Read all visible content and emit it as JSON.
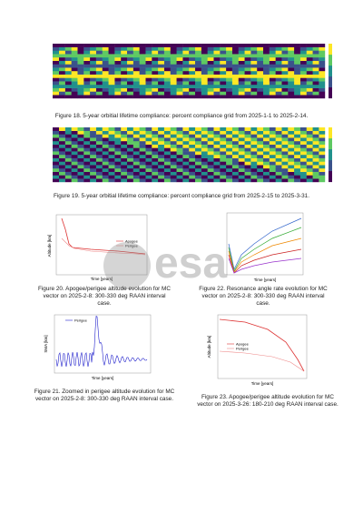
{
  "watermark": "esa",
  "figures": [
    {
      "caption": "Figure 18. 5-year orbitial lifetime compliance: percent compliance grid from 2025-1-1 to 2025-2-14."
    },
    {
      "caption": "Figure 19. 5-year orbitial lifetime compliance: percent compliance grid from 2025-2-15 to 2025-3-31."
    },
    {
      "caption": "Figure 20. Apogee/perigee altitude evolution for MC vector on 2025-2-8: 300-330 deg RAAN interval case.",
      "xlabel": "Time [years]",
      "ylabel": "Altitude [km]",
      "legend": [
        "Apogee",
        "Perigee"
      ]
    },
    {
      "caption": "Figure 22. Resonance angle rate evolution for MC vector on 2025-2-8: 300-330 deg RAAN interval case.",
      "xlabel": "Time [years]"
    },
    {
      "caption": "Figure 21. Zoomed in perigee altitude evolution for MC vector on 2025-2-8: 300-330 deg RAAN interval case.",
      "xlabel": "Time [years]",
      "ylabel": "SMA [km]",
      "legend": [
        "Perigee"
      ]
    },
    {
      "caption": "Figure 23. Apogee/perigee altitude evolution for MC vector on 2025-3-26: 180-210 deg RAAN interval case.",
      "xlabel": "Time [years]",
      "ylabel": "Altitude [km]",
      "legend": [
        "Apogee",
        "Perigee"
      ]
    }
  ]
}
